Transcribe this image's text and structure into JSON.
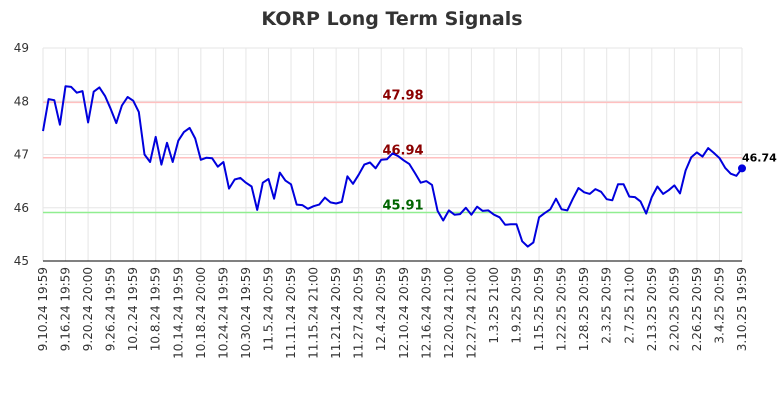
{
  "chart_data": {
    "type": "line",
    "title": "KORP Long Term Signals",
    "xlabel": "",
    "ylabel": "",
    "ylim": [
      45,
      49
    ],
    "y_ticks": [
      "45",
      "46",
      "47",
      "48",
      "49"
    ],
    "grid": true,
    "x_tick_labels": [
      "9.10.24 19:59",
      "9.16.24 19:59",
      "9.20.24 20:00",
      "9.26.24 19:59",
      "10.2.24 19:59",
      "10.8.24 19:59",
      "10.14.24 19:59",
      "10.18.24 20:00",
      "10.24.24 19:59",
      "10.30.24 19:59",
      "11.5.24 20:59",
      "11.11.24 20:59",
      "11.15.24 21:00",
      "11.21.24 20:59",
      "11.27.24 20:59",
      "12.4.24 20:59",
      "12.10.24 20:59",
      "12.16.24 20:59",
      "12.20.24 21:00",
      "12.27.24 21:00",
      "1.3.25 21:00",
      "1.9.25 20:59",
      "1.15.25 20:59",
      "1.22.25 20:59",
      "1.28.25 20:59",
      "2.3.25 20:59",
      "2.7.25 21:00",
      "2.13.25 20:59",
      "2.20.25 20:59",
      "2.26.25 20:59",
      "3.4.25 20:59",
      "3.10.25 19:59"
    ],
    "series": [
      {
        "color": "#0000dd",
        "values": [
          47.44,
          48.04,
          48.02,
          47.56,
          48.28,
          48.27,
          48.16,
          48.19,
          47.6,
          48.18,
          48.26,
          48.1,
          47.86,
          47.59,
          47.92,
          48.08,
          48.01,
          47.8,
          47.0,
          46.86,
          47.33,
          46.81,
          47.22,
          46.86,
          47.26,
          47.42,
          47.5,
          47.3,
          46.9,
          46.94,
          46.93,
          46.77,
          46.86,
          46.36,
          46.53,
          46.56,
          46.47,
          46.4,
          45.96,
          46.47,
          46.54,
          46.17,
          46.66,
          46.51,
          46.44,
          46.06,
          46.05,
          45.98,
          46.03,
          46.06,
          46.19,
          46.1,
          46.08,
          46.11,
          46.59,
          46.45,
          46.62,
          46.81,
          46.85,
          46.74,
          46.9,
          46.91,
          47.02,
          46.97,
          46.89,
          46.82,
          46.65,
          46.47,
          46.5,
          46.43,
          45.94,
          45.76,
          45.95,
          45.87,
          45.88,
          46.0,
          45.87,
          46.02,
          45.94,
          45.95,
          45.87,
          45.82,
          45.68,
          45.69,
          45.69,
          45.37,
          45.27,
          45.35,
          45.82,
          45.9,
          45.97,
          46.17,
          45.97,
          45.95,
          46.17,
          46.37,
          46.29,
          46.26,
          46.35,
          46.3,
          46.16,
          46.14,
          46.44,
          46.44,
          46.21,
          46.2,
          46.12,
          45.89,
          46.2,
          46.4,
          46.26,
          46.33,
          46.42,
          46.27,
          46.7,
          46.95,
          47.04,
          46.96,
          47.12,
          47.03,
          46.93,
          46.75,
          46.64,
          46.6,
          46.74
        ]
      }
    ],
    "last_point": {
      "value": 46.74,
      "label": "46.74"
    },
    "horizontal_lines": [
      {
        "value": 47.98,
        "label": "47.98",
        "line_color": "#ffc0c0",
        "label_color": "#8b0000"
      },
      {
        "value": 46.94,
        "label": "46.94",
        "line_color": "#ffc0c0",
        "label_color": "#8b0000"
      },
      {
        "value": 45.91,
        "label": "45.91",
        "line_color": "#90ee90",
        "label_color": "#006400"
      }
    ]
  }
}
